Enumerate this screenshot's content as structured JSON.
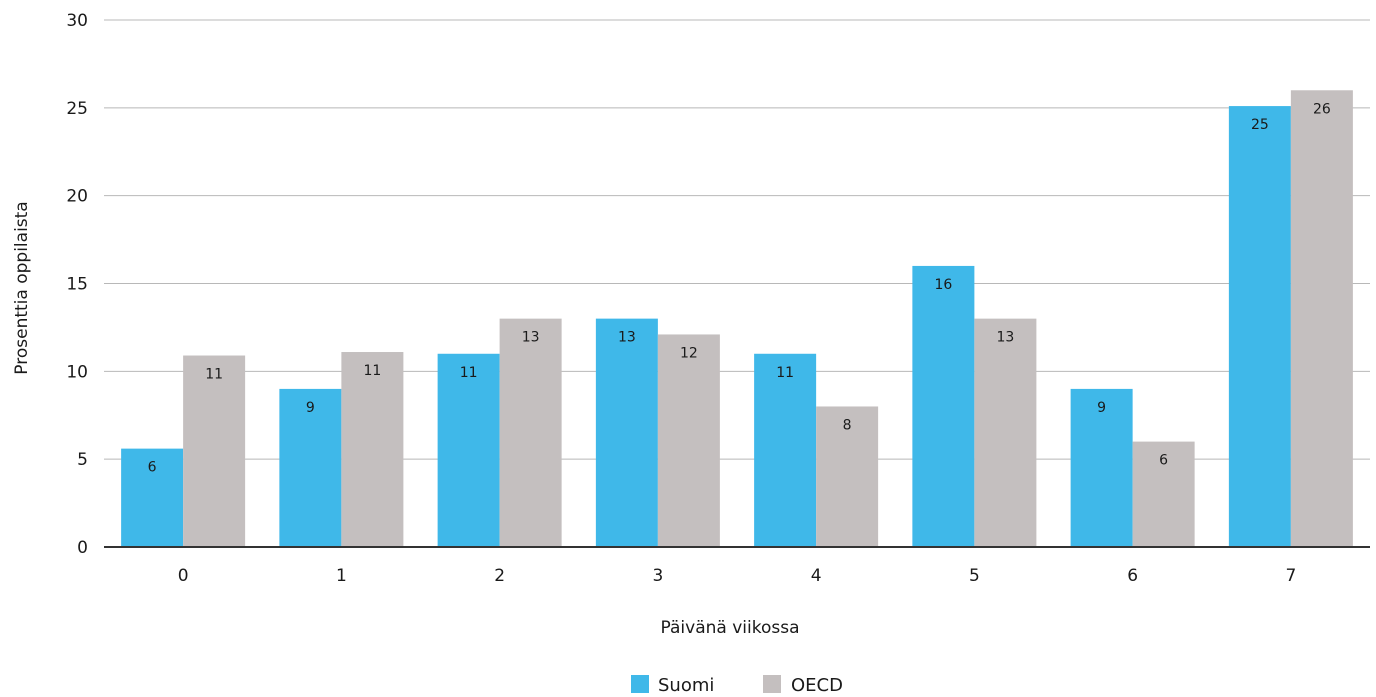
{
  "colors": {
    "suomi": "#3fb8e9",
    "oecd": "#c4bfbf",
    "grid": "#b8b8b8",
    "axis": "#333333"
  },
  "chart_data": {
    "type": "bar",
    "title": "",
    "xlabel": "Päivänä viikossa",
    "ylabel": "Prosenttia oppilaista",
    "ylim": [
      0,
      30
    ],
    "yticks": [
      "0",
      "5",
      "10",
      "15",
      "20",
      "25",
      "30"
    ],
    "categories": [
      "0",
      "1",
      "2",
      "3",
      "4",
      "5",
      "6",
      "7"
    ],
    "grid": true,
    "legend_position": "bottom-center",
    "series": [
      {
        "name": "Suomi",
        "color": "#3fb8e9",
        "values": [
          5.6,
          9,
          11,
          13,
          11,
          16,
          9,
          25.1
        ],
        "labels": [
          "6",
          "9",
          "11",
          "13",
          "11",
          "16",
          "9",
          "25"
        ]
      },
      {
        "name": "OECD",
        "color": "#c4bfbf",
        "values": [
          10.9,
          11.1,
          13,
          12.1,
          8,
          13,
          6,
          26
        ],
        "labels": [
          "11",
          "11",
          "13",
          "12",
          "8",
          "13",
          "6",
          "26"
        ]
      }
    ]
  }
}
